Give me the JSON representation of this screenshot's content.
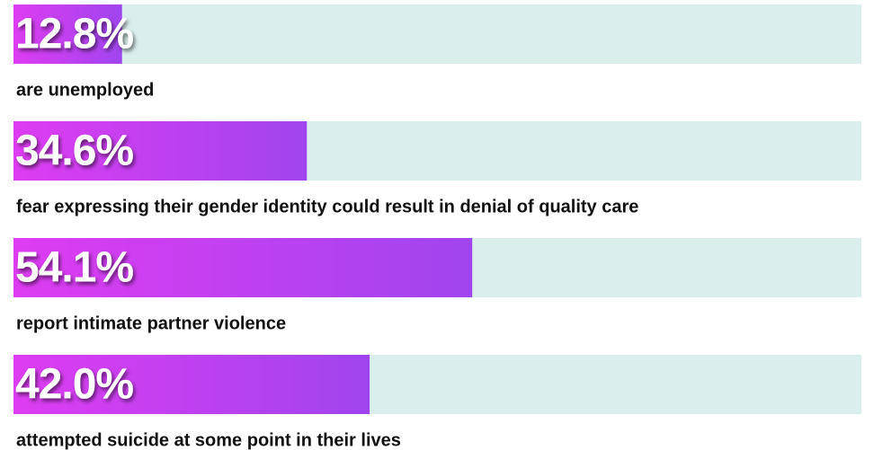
{
  "chart_data": {
    "type": "bar",
    "categories": [
      "are unemployed",
      "fear expressing their gender identity could result in denial of quality care",
      "report intimate partner violence",
      "attempted suicide at some point in their lives"
    ],
    "values": [
      12.8,
      34.6,
      54.1,
      42.0
    ],
    "value_labels": [
      "12.8%",
      "34.6%",
      "54.1%",
      "42.0%"
    ],
    "xlim": [
      0,
      100
    ],
    "gradient": [
      "#de3cf2",
      "#a045ee"
    ],
    "track_color": "#d9eeed"
  }
}
